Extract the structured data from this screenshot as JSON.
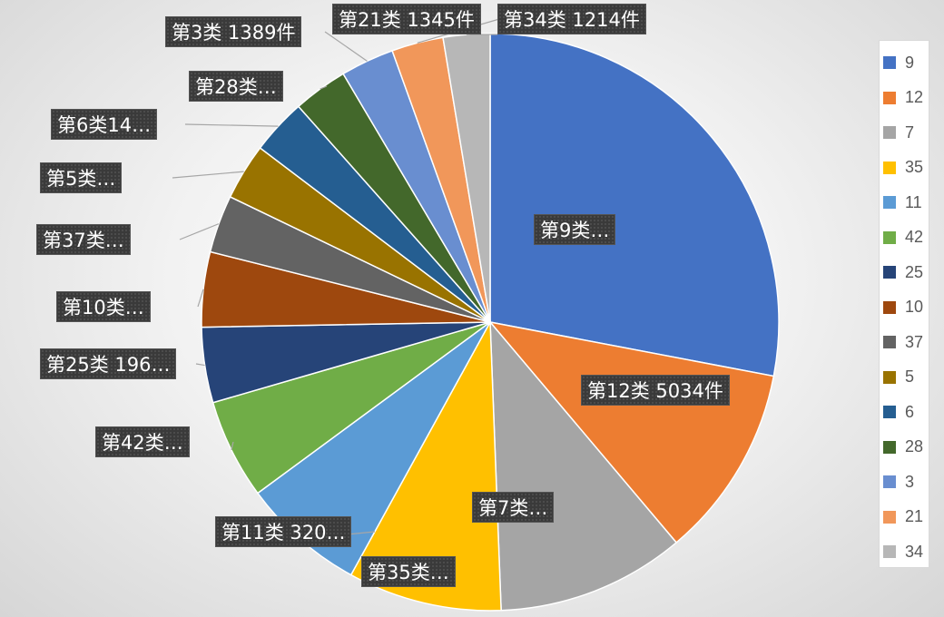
{
  "chart_data": {
    "type": "pie",
    "legend_position": "right",
    "slices": [
      {
        "legend": "9",
        "label": "第9类…",
        "value": 13000,
        "color": "#4472C4"
      },
      {
        "legend": "12",
        "label": "第12类 5034件",
        "value": 5034,
        "color": "#ED7D31"
      },
      {
        "legend": "7",
        "label": "第7类…",
        "value": 4900,
        "color": "#A5A5A5"
      },
      {
        "legend": "35",
        "label": "第35类…",
        "value": 4000,
        "color": "#FFC000"
      },
      {
        "legend": "11",
        "label": "第11类 320…",
        "value": 3200,
        "color": "#5B9BD5"
      },
      {
        "legend": "42",
        "label": "第42类…",
        "value": 2600,
        "color": "#70AD47"
      },
      {
        "legend": "25",
        "label": "第25类 196…",
        "value": 1960,
        "color": "#264478"
      },
      {
        "legend": "10",
        "label": "第10类…",
        "value": 1950,
        "color": "#9E480E"
      },
      {
        "legend": "37",
        "label": "第37类…",
        "value": 1500,
        "color": "#636363"
      },
      {
        "legend": "5",
        "label": "第5类…",
        "value": 1470,
        "color": "#997300"
      },
      {
        "legend": "6",
        "label": "第6类14…",
        "value": 1450,
        "color": "#255E91"
      },
      {
        "legend": "28",
        "label": "第28类…",
        "value": 1420,
        "color": "#43682B"
      },
      {
        "legend": "3",
        "label": "第3类 1389件",
        "value": 1389,
        "color": "#698ED0"
      },
      {
        "legend": "21",
        "label": "第21类 1345件",
        "value": 1345,
        "color": "#F1975A"
      },
      {
        "legend": "34",
        "label": "第34类 1214件",
        "value": 1214,
        "color": "#B7B7B7"
      }
    ]
  }
}
